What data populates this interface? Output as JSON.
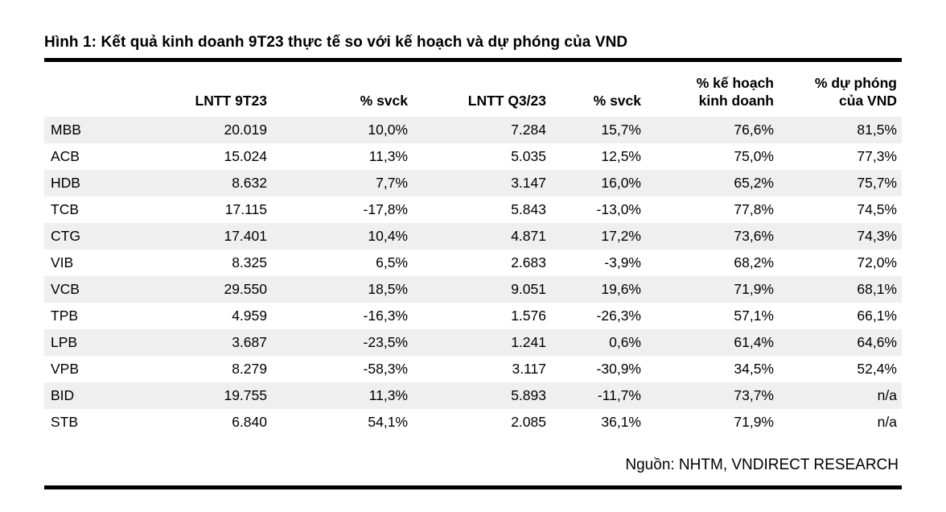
{
  "figure": {
    "title": "Hình 1: Kết quả kinh doanh 9T23 thực tế so với kế hoạch và dự phóng của VND",
    "source": "Nguồn: NHTM, VNDIRECT RESEARCH"
  },
  "chart_data": {
    "type": "table",
    "columns": [
      "",
      "LNTT 9T23",
      "% svck",
      "LNTT  Q3/23",
      "% svck",
      "% kế hoạch\nkinh doanh",
      "% dự phóng\ncủa VND"
    ],
    "rows": [
      [
        "MBB",
        "20.019",
        "10,0%",
        "7.284",
        "15,7%",
        "76,6%",
        "81,5%"
      ],
      [
        "ACB",
        "15.024",
        "11,3%",
        "5.035",
        "12,5%",
        "75,0%",
        "77,3%"
      ],
      [
        "HDB",
        "8.632",
        "7,7%",
        "3.147",
        "16,0%",
        "65,2%",
        "75,7%"
      ],
      [
        "TCB",
        "17.115",
        "-17,8%",
        "5.843",
        "-13,0%",
        "77,8%",
        "74,5%"
      ],
      [
        "CTG",
        "17.401",
        "10,4%",
        "4.871",
        "17,2%",
        "73,6%",
        "74,3%"
      ],
      [
        "VIB",
        "8.325",
        "6,5%",
        "2.683",
        "-3,9%",
        "68,2%",
        "72,0%"
      ],
      [
        "VCB",
        "29.550",
        "18,5%",
        "9.051",
        "19,6%",
        "71,9%",
        "68,1%"
      ],
      [
        "TPB",
        "4.959",
        "-16,3%",
        "1.576",
        "-26,3%",
        "57,1%",
        "66,1%"
      ],
      [
        "LPB",
        "3.687",
        "-23,5%",
        "1.241",
        "0,6%",
        "61,4%",
        "64,6%"
      ],
      [
        "VPB",
        "8.279",
        "-58,3%",
        "3.117",
        "-30,9%",
        "34,5%",
        "52,4%"
      ],
      [
        "BID",
        "19.755",
        "11,3%",
        "5.893",
        "-11,7%",
        "73,7%",
        "n/a"
      ],
      [
        "STB",
        "6.840",
        "54,1%",
        "2.085",
        "36,1%",
        "71,9%",
        "n/a"
      ]
    ]
  }
}
